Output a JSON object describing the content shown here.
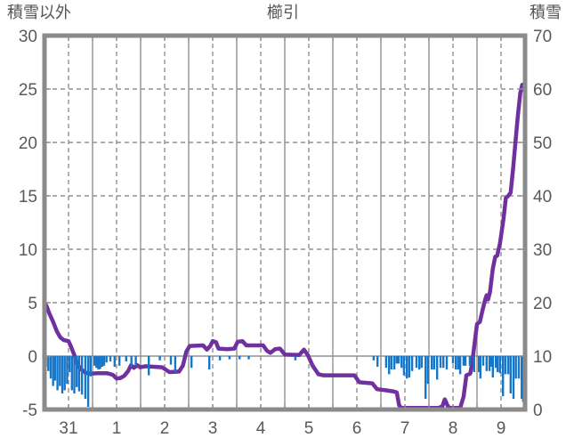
{
  "chart_data": {
    "type": "combo",
    "title": "櫛引",
    "left_axis": {
      "label": "積雪以外",
      "min": -5,
      "max": 30,
      "ticks": [
        30,
        25,
        20,
        15,
        10,
        5,
        0,
        -5
      ]
    },
    "right_axis": {
      "label": "積雪",
      "min": 0,
      "max": 70,
      "ticks": [
        70,
        60,
        50,
        40,
        30,
        20,
        10,
        0
      ]
    },
    "x_axis": {
      "labels": [
        "31",
        "1",
        "2",
        "3",
        "4",
        "5",
        "6",
        "7",
        "8",
        "9"
      ],
      "days": 10
    },
    "colors": {
      "line": "#7030A0",
      "bar": "#1776C8",
      "frame": "#8A8A8A",
      "grid": "#909090",
      "text": "#595959"
    },
    "series": [
      {
        "name": "積雪",
        "type": "line",
        "axis": "right",
        "color": "#7030A0",
        "points": [
          [
            0.0,
            20
          ],
          [
            0.04,
            19.4
          ],
          [
            0.1,
            18
          ],
          [
            0.18,
            16.4
          ],
          [
            0.26,
            14.6
          ],
          [
            0.33,
            13.5
          ],
          [
            0.4,
            13
          ],
          [
            0.5,
            12.8
          ],
          [
            0.55,
            11.8
          ],
          [
            0.62,
            10.2
          ],
          [
            0.68,
            8.6
          ],
          [
            0.75,
            7.6
          ],
          [
            0.85,
            6.9
          ],
          [
            0.95,
            6.7
          ],
          [
            1.1,
            6.8
          ],
          [
            1.3,
            6.8
          ],
          [
            1.42,
            6.5
          ],
          [
            1.5,
            5.8
          ],
          [
            1.58,
            5.9
          ],
          [
            1.66,
            6.3
          ],
          [
            1.74,
            7.2
          ],
          [
            1.8,
            8.3
          ],
          [
            1.86,
            7.8
          ],
          [
            1.93,
            8.3
          ],
          [
            1.99,
            7.9
          ],
          [
            2.1,
            8.1
          ],
          [
            2.45,
            7.9
          ],
          [
            2.6,
            7.0
          ],
          [
            2.8,
            7.1
          ],
          [
            2.88,
            8.2
          ],
          [
            2.95,
            10.8
          ],
          [
            3.02,
            11.9
          ],
          [
            3.3,
            12
          ],
          [
            3.38,
            11.2
          ],
          [
            3.45,
            11.9
          ],
          [
            3.5,
            12.8
          ],
          [
            3.57,
            12.6
          ],
          [
            3.62,
            11.4
          ],
          [
            3.8,
            11.3
          ],
          [
            3.95,
            11.4
          ],
          [
            4.02,
            12.7
          ],
          [
            4.12,
            12.8
          ],
          [
            4.2,
            12
          ],
          [
            4.55,
            12
          ],
          [
            4.63,
            11
          ],
          [
            4.7,
            10.6
          ],
          [
            4.8,
            11.3
          ],
          [
            4.9,
            11.4
          ],
          [
            5.0,
            10.3
          ],
          [
            5.3,
            10.2
          ],
          [
            5.4,
            11.2
          ],
          [
            5.48,
            10.2
          ],
          [
            5.58,
            8.2
          ],
          [
            5.7,
            6.6
          ],
          [
            5.8,
            6.4
          ],
          [
            6.45,
            6.4
          ],
          [
            6.55,
            5.1
          ],
          [
            6.82,
            4.9
          ],
          [
            6.92,
            3.8
          ],
          [
            7.1,
            3.6
          ],
          [
            7.25,
            3.4
          ],
          [
            7.33,
            3.2
          ],
          [
            7.38,
            0.8
          ],
          [
            7.42,
            0.3
          ],
          [
            8.2,
            0.3
          ],
          [
            8.28,
            0.6
          ],
          [
            8.33,
            1.9
          ],
          [
            8.4,
            0.5
          ],
          [
            8.45,
            0.3
          ],
          [
            8.65,
            0.3
          ],
          [
            8.72,
            2.4
          ],
          [
            8.78,
            6.4
          ],
          [
            8.86,
            6.7
          ],
          [
            8.9,
            8.8
          ],
          [
            8.95,
            12.4
          ],
          [
            9.0,
            16
          ],
          [
            9.06,
            16.4
          ],
          [
            9.12,
            18.8
          ],
          [
            9.17,
            20.6
          ],
          [
            9.2,
            21.4
          ],
          [
            9.23,
            20.6
          ],
          [
            9.27,
            22
          ],
          [
            9.33,
            26.4
          ],
          [
            9.38,
            28.6
          ],
          [
            9.42,
            28.8
          ],
          [
            9.48,
            31.2
          ],
          [
            9.55,
            35.6
          ],
          [
            9.6,
            39.6
          ],
          [
            9.65,
            40
          ],
          [
            9.7,
            40.6
          ],
          [
            9.75,
            45
          ],
          [
            9.8,
            50
          ],
          [
            9.85,
            55
          ],
          [
            9.9,
            59.2
          ],
          [
            9.94,
            60.8
          ],
          [
            9.97,
            60.6
          ]
        ]
      },
      {
        "name": "積雪以外",
        "type": "bar",
        "axis": "left",
        "color": "#1776C8",
        "points": [
          [
            0.03,
            -1.0
          ],
          [
            0.08,
            -1.4
          ],
          [
            0.13,
            -2.1
          ],
          [
            0.18,
            -2.8
          ],
          [
            0.22,
            -2.3
          ],
          [
            0.27,
            -3.2
          ],
          [
            0.32,
            -2.8
          ],
          [
            0.37,
            -3.5
          ],
          [
            0.42,
            -3.2
          ],
          [
            0.47,
            -2.6
          ],
          [
            0.52,
            -1.5
          ],
          [
            0.57,
            -3.2
          ],
          [
            0.62,
            -3.5
          ],
          [
            0.67,
            -2.9
          ],
          [
            0.72,
            -3.3
          ],
          [
            0.78,
            -3.6
          ],
          [
            0.85,
            -4.0
          ],
          [
            0.91,
            -4.75
          ],
          [
            0.96,
            -1.9
          ],
          [
            1.04,
            -0.9
          ],
          [
            1.08,
            -1.1
          ],
          [
            1.12,
            -1.25
          ],
          [
            1.16,
            -1.2
          ],
          [
            1.2,
            -1.0
          ],
          [
            1.24,
            -0.9
          ],
          [
            1.29,
            -0.6
          ],
          [
            1.37,
            -0.5
          ],
          [
            1.46,
            -1.0
          ],
          [
            1.56,
            -0.9
          ],
          [
            1.7,
            -0.5
          ],
          [
            1.81,
            -1.0
          ],
          [
            1.9,
            -0.9
          ],
          [
            2.17,
            -1.8
          ],
          [
            2.4,
            -0.4
          ],
          [
            2.63,
            -0.8
          ],
          [
            2.72,
            -1.5
          ],
          [
            3.06,
            -1.1
          ],
          [
            3.43,
            -1.25
          ],
          [
            3.65,
            -0.4
          ],
          [
            3.85,
            -0.3
          ],
          [
            4.06,
            -0.3
          ],
          [
            4.25,
            -0.3
          ],
          [
            5.22,
            -0.4
          ],
          [
            6.85,
            -0.4
          ],
          [
            6.93,
            -1.0
          ],
          [
            7.11,
            -1.1
          ],
          [
            7.17,
            -1.7
          ],
          [
            7.22,
            -1.25
          ],
          [
            7.28,
            -1.25
          ],
          [
            7.33,
            -0.7
          ],
          [
            7.37,
            -0.7
          ],
          [
            7.43,
            -1.1
          ],
          [
            7.48,
            -1.8
          ],
          [
            7.54,
            -2.1
          ],
          [
            7.59,
            -2.0
          ],
          [
            7.65,
            -1.4
          ],
          [
            7.74,
            -1.1
          ],
          [
            7.8,
            -1.25
          ],
          [
            7.85,
            -1.1
          ],
          [
            7.93,
            -4.0
          ],
          [
            7.98,
            -2.6
          ],
          [
            8.06,
            -1.25
          ],
          [
            8.11,
            -1.25
          ],
          [
            8.17,
            -2.2
          ],
          [
            8.24,
            -1.1
          ],
          [
            8.3,
            -1.1
          ],
          [
            8.37,
            -1.25
          ],
          [
            8.5,
            -0.7
          ],
          [
            8.56,
            -1.25
          ],
          [
            8.61,
            -1.25
          ],
          [
            8.65,
            -1.7
          ],
          [
            8.72,
            -0.9
          ],
          [
            8.76,
            -0.9
          ],
          [
            8.85,
            -0.9
          ],
          [
            8.94,
            -1.5
          ],
          [
            9.04,
            -1.5
          ],
          [
            9.07,
            -2.1
          ],
          [
            9.13,
            -0.9
          ],
          [
            9.2,
            -1.4
          ],
          [
            9.26,
            -1.4
          ],
          [
            9.3,
            -1.0
          ],
          [
            9.33,
            -2.0
          ],
          [
            9.39,
            -1.1
          ],
          [
            9.43,
            -1.5
          ],
          [
            9.48,
            -1.6
          ],
          [
            9.54,
            -3.75
          ],
          [
            9.59,
            -1.7
          ],
          [
            9.65,
            -1.7
          ],
          [
            9.7,
            -3.5
          ],
          [
            9.76,
            -4.0
          ],
          [
            9.81,
            -2.1
          ],
          [
            9.87,
            -2.1
          ],
          [
            9.93,
            -4.0
          ],
          [
            9.96,
            -4.3
          ]
        ]
      }
    ]
  }
}
